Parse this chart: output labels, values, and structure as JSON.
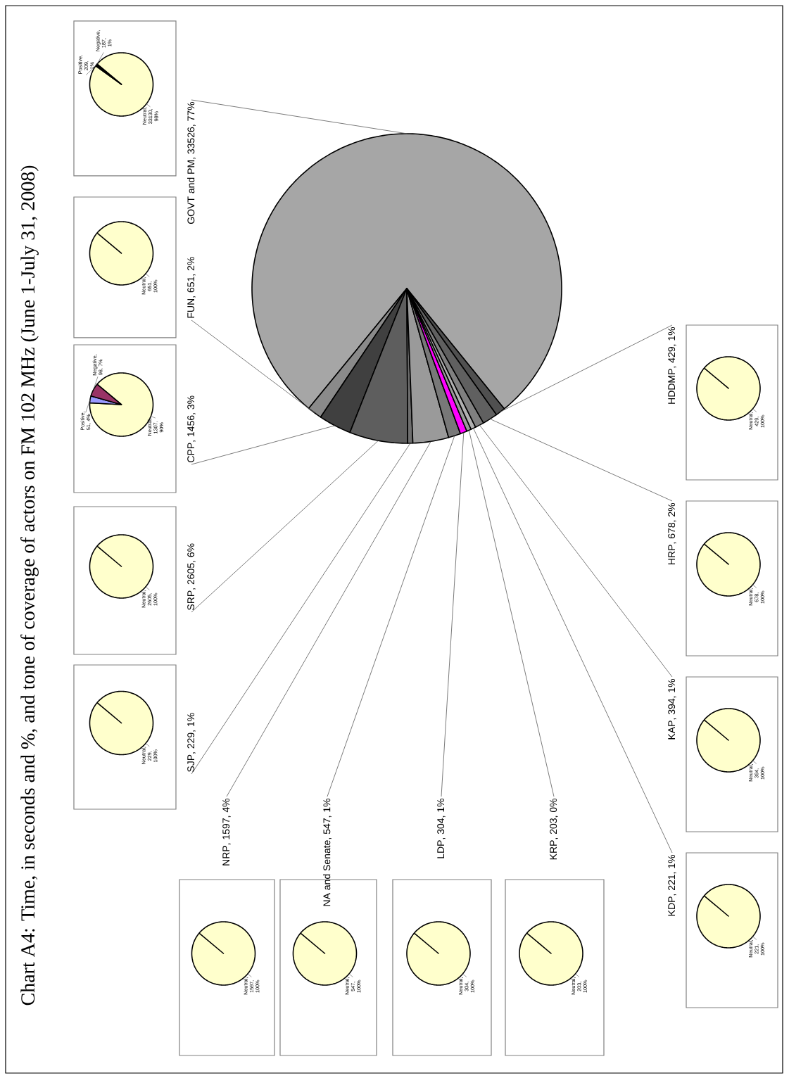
{
  "chart_data": [
    {
      "type": "pie",
      "title": "Chart A4: Time, in seconds and %, and tone of coverage of actors on FM 102 MHz (June 1-July 31, 2008)",
      "categories": [
        "GOVT and PM",
        "FUN",
        "CPP",
        "SRP",
        "SJP",
        "NRP",
        "NA and Senate",
        "LDP",
        "KRP",
        "KDP",
        "KAP",
        "HRP",
        "HDDMP"
      ],
      "values": [
        33526,
        651,
        1456,
        2605,
        229,
        1597,
        547,
        304,
        203,
        221,
        394,
        678,
        429
      ],
      "value_labels": [
        ", 33526, 77%",
        ", 651, 2%",
        ", 1456, 3%",
        ", 2605, 6%",
        ", 229, 1%",
        ", 1597, 4%",
        ", 547, 1%",
        ", 304, 1%",
        ", 203, 0%",
        ", 221, 1%",
        ", 394, 1%",
        ", 678, 2%",
        ", 429, 1%"
      ],
      "colors": [
        "#a6a6a6",
        "#8a8a8a",
        "#404040",
        "#5e5e5e",
        "#6e6e6e",
        "#9a9a9a",
        "#787878",
        "#ff00ff",
        "#999999",
        "#b0b0b0",
        "#808080",
        "#606060",
        "#505050"
      ]
    },
    {
      "type": "pie",
      "categories": [
        "Neutral",
        "Positive",
        "Negative"
      ],
      "values": [
        33130,
        209,
        187
      ],
      "value_labels": [
        ", 33130, 98%",
        ", 209, 1%",
        ", 187, 1%"
      ],
      "colors": [
        "#ffffcc",
        "#9999ff",
        "#993366"
      ]
    },
    {
      "type": "pie",
      "categories": [
        "Neutral"
      ],
      "values": [
        651
      ],
      "value_labels": [
        ", 651, 100%"
      ],
      "colors": [
        "#ffffcc"
      ]
    },
    {
      "type": "pie",
      "categories": [
        "Neutral",
        "Positive",
        "Negative"
      ],
      "values": [
        1307,
        51,
        98
      ],
      "value_labels": [
        ", 1307, 90%",
        ", 51, 4%",
        ", 98, 7%"
      ],
      "colors": [
        "#ffffcc",
        "#9999ff",
        "#993366"
      ]
    },
    {
      "type": "pie",
      "categories": [
        "Neutral"
      ],
      "values": [
        2605
      ],
      "value_labels": [
        ", 2605, 100%"
      ],
      "colors": [
        "#ffffcc"
      ]
    },
    {
      "type": "pie",
      "categories": [
        "Neutral"
      ],
      "values": [
        229
      ],
      "value_labels": [
        ", 229, 100%"
      ],
      "colors": [
        "#ffffcc"
      ]
    },
    {
      "type": "pie",
      "categories": [
        "Neutral"
      ],
      "values": [
        1597
      ],
      "value_labels": [
        ", 1597, 100%"
      ],
      "colors": [
        "#ffffcc"
      ]
    },
    {
      "type": "pie",
      "categories": [
        "Neutral"
      ],
      "values": [
        547
      ],
      "value_labels": [
        ", 547, 100%"
      ],
      "colors": [
        "#ffffcc"
      ]
    },
    {
      "type": "pie",
      "categories": [
        "Neutral"
      ],
      "values": [
        304
      ],
      "value_labels": [
        ", 304, 100%"
      ],
      "colors": [
        "#ffffcc"
      ]
    },
    {
      "type": "pie",
      "categories": [
        "Neutral"
      ],
      "values": [
        203
      ],
      "value_labels": [
        ", 203, 100%"
      ],
      "colors": [
        "#ffffcc"
      ]
    },
    {
      "type": "pie",
      "categories": [
        "Neutral"
      ],
      "values": [
        221
      ],
      "value_labels": [
        ", 221, 100%"
      ],
      "colors": [
        "#ffffcc"
      ]
    },
    {
      "type": "pie",
      "categories": [
        "Neutral"
      ],
      "values": [
        394
      ],
      "value_labels": [
        ", 394, 100%"
      ],
      "colors": [
        "#ffffcc"
      ]
    },
    {
      "type": "pie",
      "categories": [
        "Neutral"
      ],
      "values": [
        678
      ],
      "value_labels": [
        ", 678, 100%"
      ],
      "colors": [
        "#ffffcc"
      ]
    },
    {
      "type": "pie",
      "categories": [
        "Neutral"
      ],
      "values": [
        429
      ],
      "value_labels": [
        ", 429, 100%"
      ],
      "colors": [
        "#ffffcc"
      ]
    }
  ]
}
